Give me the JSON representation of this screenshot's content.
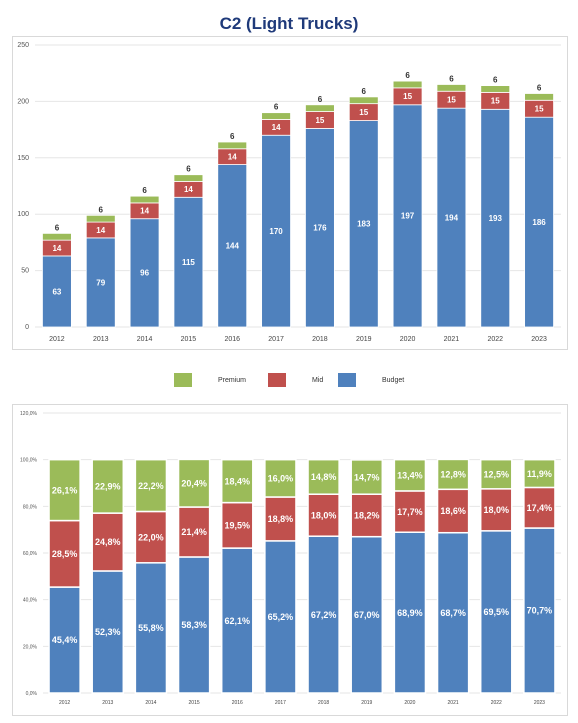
{
  "title": "C2 (Light Trucks)",
  "colors": {
    "premium": "#9bbb59",
    "mid": "#c0504d",
    "budget": "#4f81bd"
  },
  "legend": [
    {
      "key": "premium",
      "label": "Premium"
    },
    {
      "key": "mid",
      "label": "Mid"
    },
    {
      "key": "budget",
      "label": "Budget"
    }
  ],
  "chart_data": [
    {
      "type": "bar",
      "stacked": true,
      "title": "C2 (Light Trucks)",
      "categories": [
        "2012",
        "2013",
        "2014",
        "2015",
        "2016",
        "2017",
        "2018",
        "2019",
        "2020",
        "2021",
        "2022",
        "2023"
      ],
      "series": [
        {
          "name": "Budget",
          "values": [
            63,
            79,
            96,
            115,
            144,
            170,
            176,
            183,
            197,
            194,
            193,
            186
          ]
        },
        {
          "name": "Mid",
          "values": [
            14,
            14,
            14,
            14,
            14,
            14,
            15,
            15,
            15,
            15,
            15,
            15
          ]
        },
        {
          "name": "Premium",
          "values": [
            6,
            6,
            6,
            6,
            6,
            6,
            6,
            6,
            6,
            6,
            6,
            6
          ]
        }
      ],
      "ylim": [
        0,
        250
      ],
      "yticks": [
        "0",
        "50",
        "100",
        "150",
        "200",
        "250"
      ],
      "grid": true,
      "legend_position": "bottom"
    },
    {
      "type": "bar",
      "stacked": true,
      "percent": true,
      "categories": [
        "2012",
        "2013",
        "2014",
        "2015",
        "2016",
        "2017",
        "2018",
        "2019",
        "2020",
        "2021",
        "2022",
        "2023"
      ],
      "series": [
        {
          "name": "Budget",
          "values": [
            45.4,
            52.3,
            55.8,
            58.3,
            62.1,
            65.2,
            67.2,
            67.0,
            68.9,
            68.7,
            69.5,
            70.7
          ],
          "labels": [
            "45,4%",
            "52,3%",
            "55,8%",
            "58,3%",
            "62,1%",
            "65,2%",
            "67,2%",
            "67,0%",
            "68,9%",
            "68,7%",
            "69,5%",
            "70,7%"
          ]
        },
        {
          "name": "Mid",
          "values": [
            28.5,
            24.8,
            22.0,
            21.4,
            19.5,
            18.8,
            18.0,
            18.2,
            17.7,
            18.6,
            18.0,
            17.4
          ],
          "labels": [
            "28,5%",
            "24,8%",
            "22,0%",
            "21,4%",
            "19,5%",
            "18,8%",
            "18,0%",
            "18,2%",
            "17,7%",
            "18,6%",
            "18,0%",
            "17,4%"
          ]
        },
        {
          "name": "Premium",
          "values": [
            26.1,
            22.9,
            22.2,
            20.4,
            18.4,
            16.0,
            14.8,
            14.7,
            13.4,
            12.8,
            12.5,
            11.9
          ],
          "labels": [
            "26,1%",
            "22,9%",
            "22,2%",
            "20,4%",
            "18,4%",
            "16,0%",
            "14,8%",
            "14,7%",
            "13,4%",
            "12,8%",
            "12,5%",
            "11,9%"
          ]
        }
      ],
      "ylim": [
        0,
        120
      ],
      "yticks": [
        "0,0%",
        "20,0%",
        "40,0%",
        "60,0%",
        "80,0%",
        "100,0%",
        "120,0%"
      ],
      "grid": true
    }
  ]
}
